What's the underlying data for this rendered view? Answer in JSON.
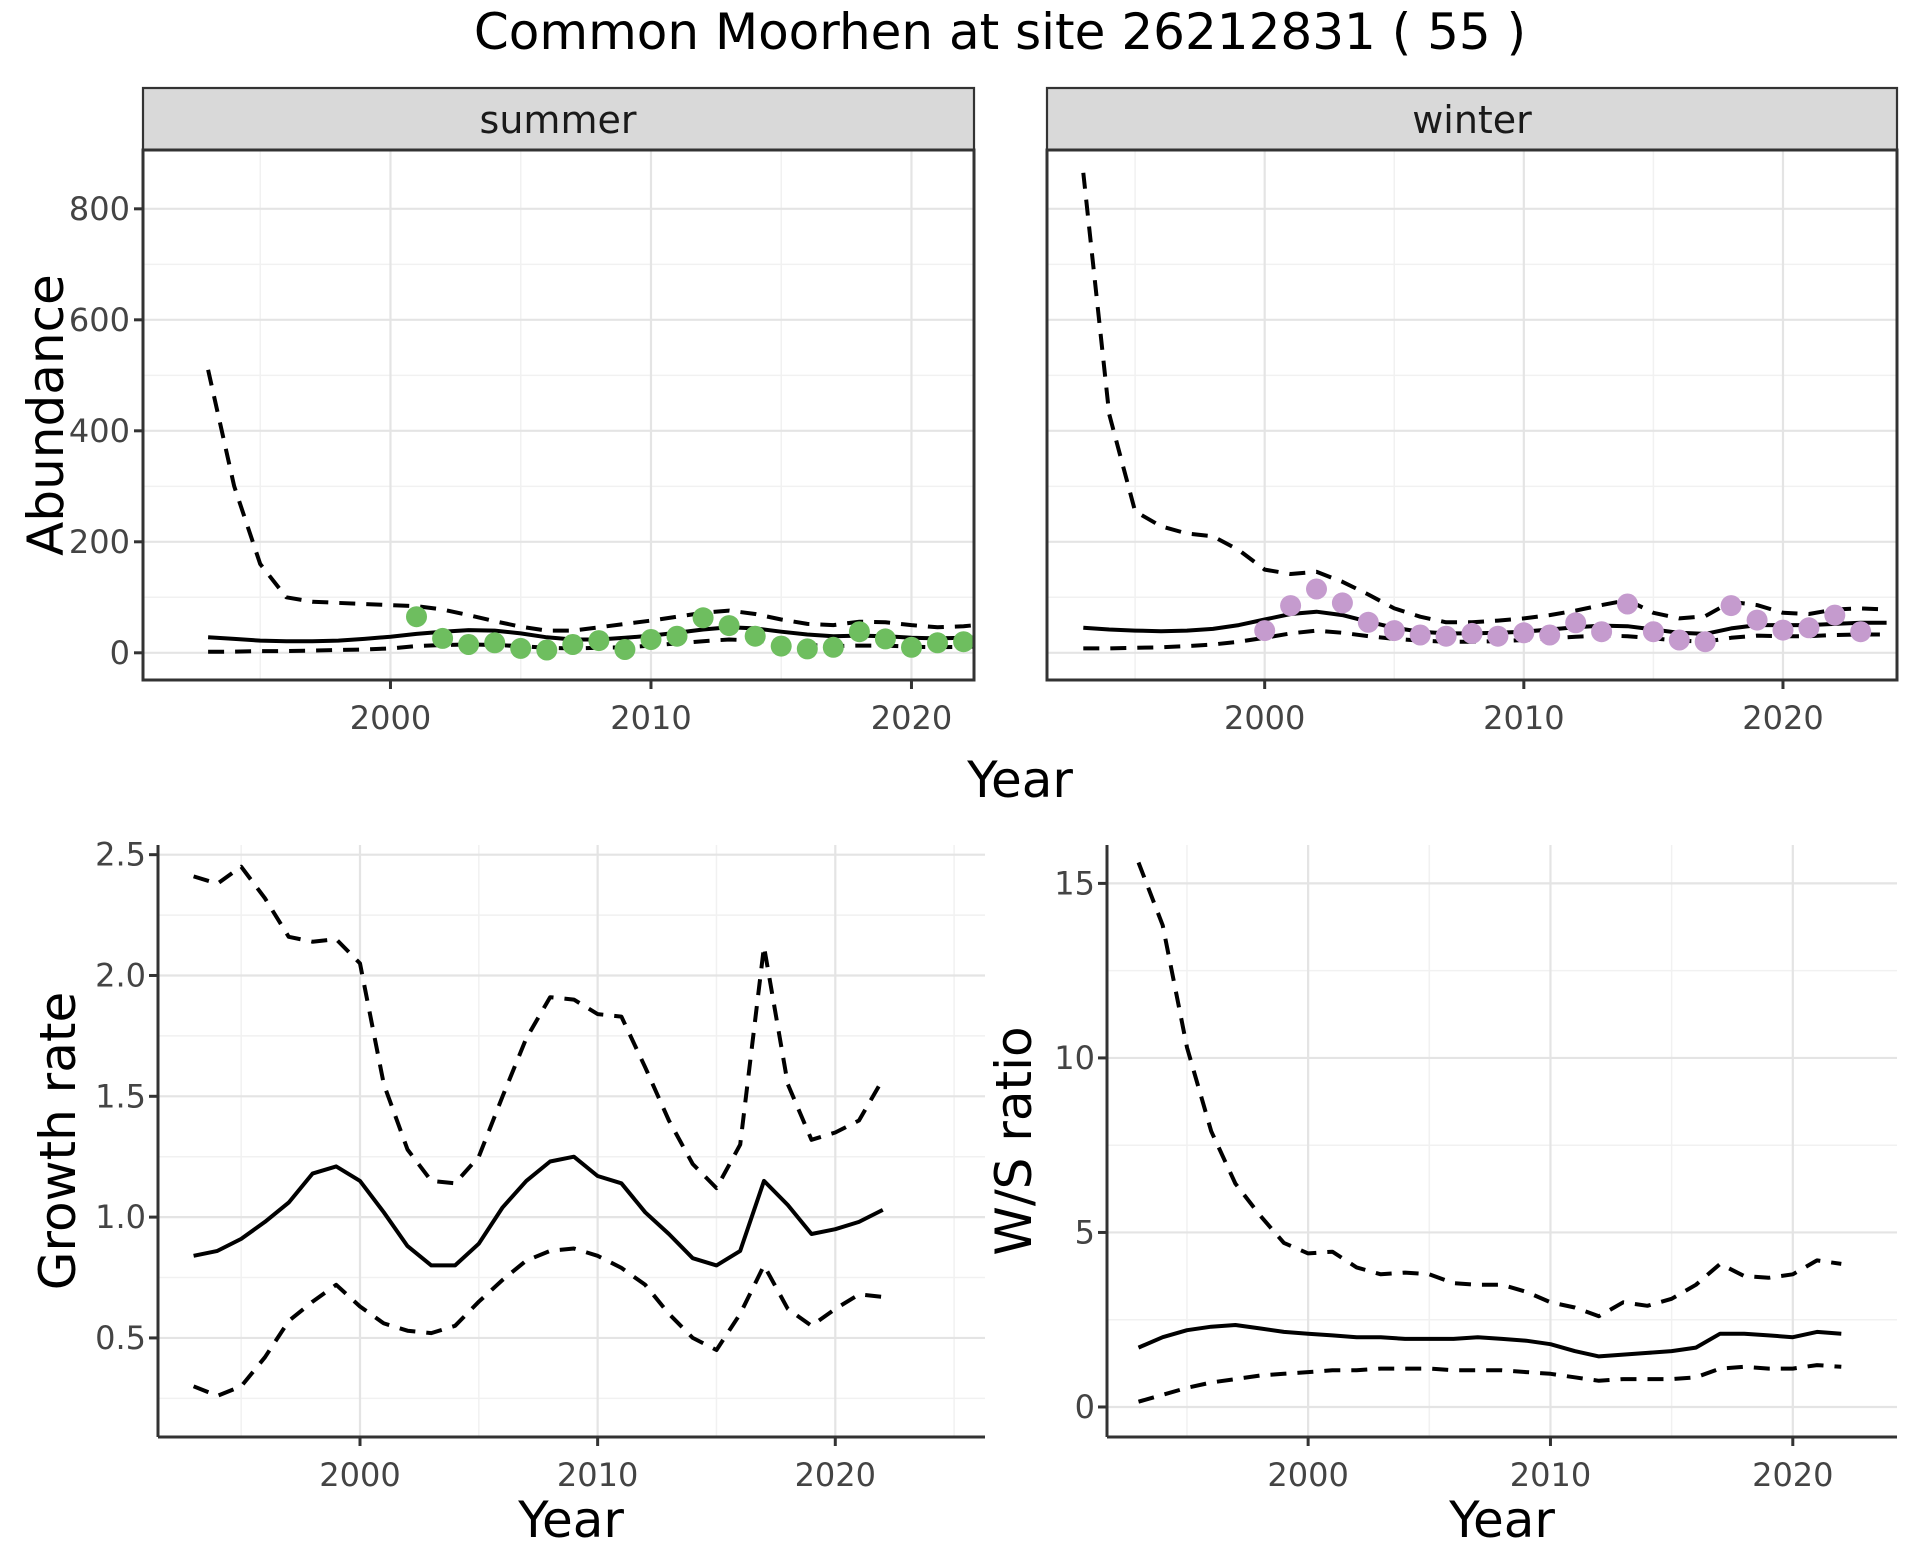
{
  "title": "Common Moorhen at site 26212831 ( 55 )",
  "facets": {
    "summer_label": "summer",
    "winter_label": "winter"
  },
  "axes": {
    "abundance_label": "Abundance",
    "year_label": "Year",
    "growth_label": "Growth rate",
    "ws_label": "W/S ratio"
  },
  "colors": {
    "background": "#FFFFFF",
    "summer_point": "#6EBE5F",
    "winter_point": "#C59BCE",
    "line": "#000000",
    "strip_bg": "#D9D9D9",
    "strip_border": "#333333",
    "panel_border": "#333333",
    "grid_major": "#E4E4E4",
    "grid_minor": "#F1F1F1",
    "tick_text": "#444444"
  },
  "chart_data": [
    {
      "panel": "summer",
      "type": "line",
      "title": "Abundance, summer facet",
      "facet_label": "summer",
      "xlabel": "Year",
      "ylabel": "Abundance",
      "xlim": [
        1990.5,
        2022.4
      ],
      "ylim": [
        -49,
        906
      ],
      "xticks": [
        2000,
        2010,
        2020
      ],
      "xtick_labels": [
        "2000",
        "2010",
        "2020"
      ],
      "yticks": [
        0,
        200,
        400,
        600,
        800
      ],
      "ytick_labels": [
        "0",
        "200",
        "400",
        "600",
        "800"
      ],
      "line_years": [
        1993,
        1994,
        1995,
        1996,
        1997,
        1998,
        1999,
        2000,
        2001,
        2002,
        2003,
        2004,
        2005,
        2006,
        2007,
        2008,
        2009,
        2010,
        2011,
        2012,
        2013,
        2014,
        2015,
        2016,
        2017,
        2018,
        2019,
        2020,
        2021,
        2022,
        2023
      ],
      "median": [
        28,
        25,
        22,
        21,
        21,
        22,
        25,
        29,
        34,
        38,
        41,
        40,
        35,
        28,
        24,
        24,
        27,
        31,
        36,
        42,
        46,
        44,
        38,
        33,
        30,
        31,
        30,
        27,
        26,
        27,
        28
      ],
      "upper": [
        510,
        300,
        160,
        100,
        92,
        90,
        88,
        86,
        84,
        78,
        68,
        57,
        47,
        40,
        40,
        46,
        52,
        58,
        65,
        72,
        76,
        70,
        60,
        52,
        50,
        56,
        55,
        50,
        46,
        48,
        52
      ],
      "lower": [
        2,
        2,
        3,
        3,
        4,
        5,
        6,
        8,
        12,
        14,
        15,
        14,
        12,
        9,
        8,
        9,
        10,
        13,
        17,
        21,
        24,
        22,
        18,
        14,
        12,
        13,
        13,
        11,
        10,
        11,
        12
      ],
      "point_years": [
        2001,
        2002,
        2003,
        2004,
        2005,
        2006,
        2007,
        2008,
        2009,
        2010,
        2011,
        2012,
        2013,
        2014,
        2015,
        2016,
        2017,
        2018,
        2019,
        2020,
        2021,
        2022
      ],
      "point_values": [
        65,
        26,
        15,
        18,
        8,
        5,
        15,
        22,
        6,
        24,
        30,
        63,
        49,
        30,
        12,
        7,
        10,
        38,
        25,
        10,
        18,
        20
      ]
    },
    {
      "panel": "winter",
      "type": "line",
      "title": "Abundance, winter facet",
      "facet_label": "winter",
      "xlabel": "Year",
      "ylabel": "Abundance",
      "xlim": [
        1991.6,
        2024.4
      ],
      "ylim": [
        -49,
        906
      ],
      "xticks": [
        2000,
        2010,
        2020
      ],
      "xtick_labels": [
        "2000",
        "2010",
        "2020"
      ],
      "yticks": [
        0,
        200,
        400,
        600,
        800
      ],
      "ytick_labels": [
        "0",
        "200",
        "400",
        "600",
        "800"
      ],
      "line_years": [
        1993,
        1994,
        1995,
        1996,
        1997,
        1998,
        1999,
        2000,
        2001,
        2002,
        2003,
        2004,
        2005,
        2006,
        2007,
        2008,
        2009,
        2010,
        2011,
        2012,
        2013,
        2014,
        2015,
        2016,
        2017,
        2018,
        2019,
        2020,
        2021,
        2022,
        2023,
        2024
      ],
      "median": [
        45,
        42,
        40,
        39,
        40,
        43,
        50,
        60,
        70,
        74,
        68,
        56,
        45,
        38,
        35,
        35,
        36,
        38,
        42,
        46,
        49,
        48,
        42,
        36,
        34,
        44,
        50,
        50,
        50,
        52,
        54,
        54
      ],
      "upper": [
        865,
        430,
        255,
        228,
        215,
        210,
        185,
        150,
        142,
        146,
        128,
        105,
        80,
        65,
        55,
        55,
        58,
        62,
        68,
        76,
        86,
        95,
        72,
        62,
        66,
        92,
        86,
        72,
        70,
        78,
        80,
        78
      ],
      "lower": [
        8,
        8,
        9,
        10,
        12,
        15,
        20,
        27,
        35,
        40,
        36,
        30,
        25,
        22,
        20,
        20,
        21,
        23,
        26,
        29,
        31,
        30,
        26,
        22,
        20,
        27,
        31,
        30,
        30,
        32,
        33,
        33
      ],
      "point_years": [
        2000,
        2001,
        2002,
        2003,
        2004,
        2005,
        2006,
        2007,
        2008,
        2009,
        2010,
        2011,
        2012,
        2013,
        2014,
        2015,
        2016,
        2017,
        2018,
        2019,
        2020,
        2021,
        2022,
        2023
      ],
      "point_values": [
        40,
        85,
        115,
        90,
        55,
        40,
        32,
        30,
        35,
        30,
        36,
        32,
        54,
        38,
        88,
        38,
        23,
        20,
        85,
        59,
        41,
        45,
        68,
        38
      ]
    },
    {
      "panel": "growth",
      "type": "line",
      "title": "Growth rate",
      "xlabel": "Year",
      "ylabel": "Growth rate",
      "xlim": [
        1991.5,
        2026.3
      ],
      "ylim": [
        0.09,
        2.54
      ],
      "xticks": [
        2000,
        2010,
        2020
      ],
      "xtick_labels": [
        "2000",
        "2010",
        "2020"
      ],
      "yticks": [
        0.5,
        1.0,
        1.5,
        2.0,
        2.5
      ],
      "ytick_labels": [
        "0.5",
        "1.0",
        "1.5",
        "2.0",
        "2.5"
      ],
      "line_years": [
        1993,
        1994,
        1995,
        1996,
        1997,
        1998,
        1999,
        2000,
        2001,
        2002,
        2003,
        2004,
        2005,
        2006,
        2007,
        2008,
        2009,
        2010,
        2011,
        2012,
        2013,
        2014,
        2015,
        2016,
        2017,
        2018,
        2019,
        2020,
        2021,
        2022
      ],
      "median": [
        0.84,
        0.86,
        0.91,
        0.98,
        1.06,
        1.18,
        1.21,
        1.15,
        1.02,
        0.88,
        0.8,
        0.8,
        0.89,
        1.04,
        1.15,
        1.23,
        1.25,
        1.17,
        1.14,
        1.02,
        0.93,
        0.83,
        0.8,
        0.86,
        1.15,
        1.05,
        0.93,
        0.95,
        0.98,
        1.03
      ],
      "upper": [
        2.41,
        2.38,
        2.45,
        2.32,
        2.16,
        2.14,
        2.15,
        2.05,
        1.55,
        1.28,
        1.15,
        1.14,
        1.25,
        1.5,
        1.74,
        1.91,
        1.9,
        1.84,
        1.83,
        1.62,
        1.4,
        1.22,
        1.12,
        1.3,
        2.12,
        1.55,
        1.32,
        1.35,
        1.4,
        1.57
      ],
      "lower": [
        0.3,
        0.26,
        0.3,
        0.42,
        0.57,
        0.65,
        0.72,
        0.63,
        0.56,
        0.53,
        0.52,
        0.55,
        0.65,
        0.74,
        0.82,
        0.86,
        0.87,
        0.84,
        0.79,
        0.72,
        0.6,
        0.5,
        0.45,
        0.6,
        0.8,
        0.62,
        0.55,
        0.62,
        0.68,
        0.67
      ]
    },
    {
      "panel": "ws",
      "type": "line",
      "title": "Winter/Summer ratio",
      "xlabel": "Year",
      "ylabel": "W/S ratio",
      "xlim": [
        1991.7,
        2024.3
      ],
      "ylim": [
        -0.86,
        16.1
      ],
      "xticks": [
        2000,
        2010,
        2020
      ],
      "xtick_labels": [
        "2000",
        "2010",
        "2020"
      ],
      "yticks": [
        0,
        5,
        10,
        15
      ],
      "ytick_labels": [
        "0",
        "5",
        "10",
        "15"
      ],
      "line_years": [
        1993,
        1994,
        1995,
        1996,
        1997,
        1998,
        1999,
        2000,
        2001,
        2002,
        2003,
        2004,
        2005,
        2006,
        2007,
        2008,
        2009,
        2010,
        2011,
        2012,
        2013,
        2014,
        2015,
        2016,
        2017,
        2018,
        2019,
        2020,
        2021,
        2022
      ],
      "median": [
        1.7,
        2.0,
        2.2,
        2.3,
        2.35,
        2.25,
        2.15,
        2.1,
        2.05,
        2.0,
        2.0,
        1.95,
        1.95,
        1.95,
        2.0,
        1.95,
        1.9,
        1.8,
        1.6,
        1.45,
        1.5,
        1.55,
        1.6,
        1.7,
        2.1,
        2.1,
        2.05,
        2.0,
        2.15,
        2.1
      ],
      "upper": [
        15.6,
        13.8,
        10.3,
        7.9,
        6.4,
        5.5,
        4.7,
        4.4,
        4.45,
        4.0,
        3.8,
        3.85,
        3.8,
        3.55,
        3.5,
        3.5,
        3.3,
        3.0,
        2.85,
        2.6,
        3.0,
        2.9,
        3.1,
        3.5,
        4.1,
        3.75,
        3.7,
        3.8,
        4.2,
        4.1
      ],
      "lower": [
        0.15,
        0.35,
        0.55,
        0.7,
        0.8,
        0.9,
        0.95,
        1.0,
        1.05,
        1.05,
        1.1,
        1.1,
        1.1,
        1.05,
        1.05,
        1.05,
        1.0,
        0.95,
        0.85,
        0.75,
        0.8,
        0.8,
        0.8,
        0.85,
        1.1,
        1.15,
        1.1,
        1.1,
        1.2,
        1.15
      ]
    }
  ]
}
